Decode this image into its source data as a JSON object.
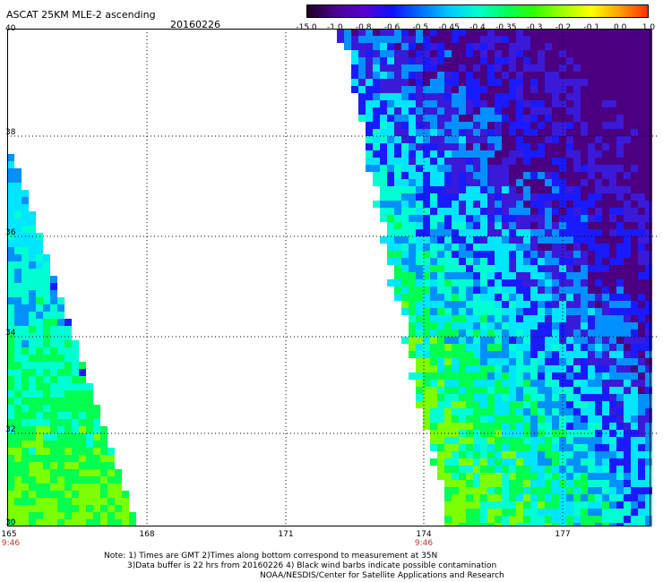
{
  "header": {
    "title": "ASCAT 25KM MLE-2 ascending",
    "date": "20160226"
  },
  "colorbar": {
    "labels": [
      "-15.0",
      "-1.0",
      "-0.8",
      "-0.6",
      "-0.5",
      "-0.45",
      "-0.4",
      "-0.35",
      "-0.3",
      "-0.2",
      "-0.1",
      "0.0",
      "1.0"
    ],
    "colors": [
      "#200020",
      "#4a0090",
      "#5a00d0",
      "#1010ff",
      "#0070ff",
      "#00c8ff",
      "#00ffd0",
      "#00ff60",
      "#30ff00",
      "#a0ff00",
      "#ffff00",
      "#ffa000",
      "#ff3000"
    ]
  },
  "map": {
    "lat_labels": [
      "40",
      "38",
      "36",
      "34",
      "32",
      "30"
    ],
    "lon_labels": [
      "165",
      "168",
      "171",
      "174",
      "177"
    ],
    "time_labels": [
      "9:46",
      "9:46"
    ],
    "palette": {
      "deep_purple": "#4b0082",
      "blue_violet": "#3a1ad8",
      "blue": "#1a1aff",
      "azure": "#0090ff",
      "cyan": "#00e6ff",
      "aqua": "#00ffd2",
      "green": "#00ff50",
      "yellow_green": "#7cff00"
    }
  },
  "notes": {
    "line1": "Note: 1) Times are GMT 2)Times along bottom correspond to measurement at 35N",
    "line2": "3)Data buffer is 22 hrs from 20160226 4) Black wind barbs indicate possible contamination",
    "line3": "NOAA/NESDIS/Center for Satellite Applications and Research"
  }
}
